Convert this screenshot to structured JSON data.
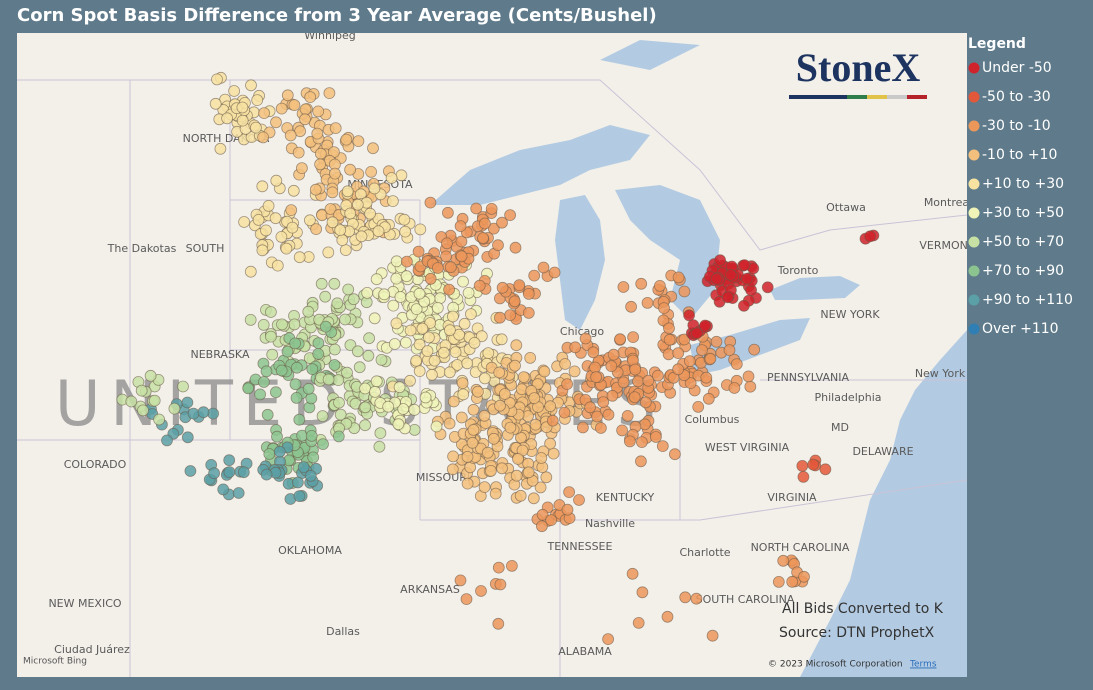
{
  "header": {
    "title": "Corn Spot Basis Difference from 3 Year Average (Cents/Bushel)"
  },
  "legend": {
    "title": "Legend",
    "items": [
      {
        "label": "Under -50",
        "color": "#d0222a"
      },
      {
        "label": "-50 to -30",
        "color": "#e3583a"
      },
      {
        "label": "-30 to -10",
        "color": "#ec975a"
      },
      {
        "label": "-10 to +10",
        "color": "#f3bf7c"
      },
      {
        "label": "+10 to +30",
        "color": "#f7e2a2"
      },
      {
        "label": "+30 to +50",
        "color": "#eff3b8"
      },
      {
        "label": "+50 to +70",
        "color": "#c7e1a4"
      },
      {
        "label": "+70 to +90",
        "color": "#8cc48f"
      },
      {
        "label": "+90 to +110",
        "color": "#5aa0a6"
      },
      {
        "label": "Over +110",
        "color": "#2f7fb5"
      }
    ]
  },
  "logo": {
    "text": "StoneX"
  },
  "map": {
    "country_label": "UNITED STATES",
    "labels": [
      "Winnipeg",
      "NORTH DAKOTA",
      "MINNESOTA",
      "The Dakotas",
      "SOUTH",
      "NEBRASKA",
      "COLORADO",
      "MISSOURI",
      "KENTUCKY",
      "Nashville",
      "TENNESSEE",
      "OKLAHOMA",
      "ARKANSAS",
      "NEW MEXICO",
      "Dallas",
      "ALABAMA",
      "Ciudad Juárez",
      "Charlotte",
      "NORTH CAROLINA",
      "SOUTH CAROLINA",
      "VIRGINIA",
      "WEST VIRGINIA",
      "DELAWARE",
      "MD",
      "Philadelphia",
      "New York",
      "PENNSYLVANIA",
      "NEW YORK",
      "Toronto",
      "Ottawa",
      "Montreal",
      "VERMONT",
      "Columbus",
      "Chicago"
    ]
  },
  "notes": {
    "line1": "All Bids Converted to K",
    "line2": "Source: DTN ProphetX"
  },
  "footer": {
    "copyright": "© 2023 Microsoft Corporation",
    "terms": "Terms",
    "bing": "Microsoft Bing"
  }
}
